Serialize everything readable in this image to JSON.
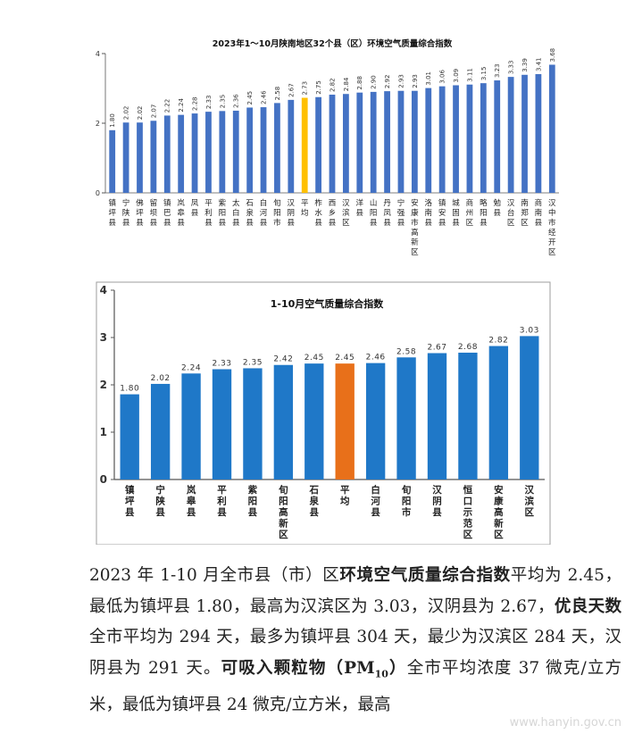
{
  "chart_data": [
    {
      "type": "bar",
      "title": "2023年1～10月陕南地区32个县（区）环境空气质量综合指数",
      "ylim": [
        0,
        4
      ],
      "yticks": [
        0,
        2,
        4
      ],
      "categories": [
        "镇坪县",
        "宁陕县",
        "佛坪县",
        "留坝县",
        "镇巴县",
        "岚皋县",
        "凤县",
        "平利县",
        "紫阳县",
        "太白县",
        "石泉县",
        "白河县",
        "旬阳市",
        "汉阴县",
        "平均",
        "柞水县",
        "西乡县",
        "汉滨区",
        "洋县",
        "山阳县",
        "丹凤县",
        "宁强县",
        "安康市高新区",
        "洛南县",
        "镇安县",
        "城固县",
        "商州区",
        "略阳县",
        "勉县",
        "汉台区",
        "南郑区",
        "商南县",
        "汉中市经开区"
      ],
      "values": [
        1.8,
        2.02,
        2.02,
        2.07,
        2.22,
        2.24,
        2.28,
        2.33,
        2.35,
        2.36,
        2.45,
        2.46,
        2.58,
        2.67,
        2.73,
        2.75,
        2.82,
        2.84,
        2.88,
        2.9,
        2.92,
        2.93,
        2.93,
        3.01,
        3.06,
        3.09,
        3.11,
        3.15,
        3.23,
        3.33,
        3.39,
        3.41,
        3.68
      ],
      "value_labels": [
        "1.80",
        "2.02",
        "2.02",
        "2.07",
        "2.22",
        "2.24",
        "2.28",
        "2.33",
        "2.35",
        "2.36",
        "2.45",
        "2.46",
        "2.58",
        "2.67",
        "2.73",
        "2.75",
        "2.82",
        "2.84",
        "2.88",
        "2.90",
        "2.92",
        "2.93",
        "2.93",
        "3.01",
        "3.06",
        "3.09",
        "3.11",
        "3.15",
        "3.23",
        "3.33",
        "3.39",
        "3.41",
        "3.68"
      ],
      "highlight": "平均",
      "colors": {
        "bar": "#4472c4",
        "highlight": "#ffc000"
      }
    },
    {
      "type": "bar",
      "title": "1-10月空气质量综合指数",
      "ylim": [
        0,
        4
      ],
      "yticks": [
        0,
        1,
        2,
        3,
        4
      ],
      "categories": [
        "镇坪县",
        "宁陕县",
        "岚皋县",
        "平利县",
        "紫阳县",
        "旬阳高新区",
        "石泉县",
        "平均",
        "白河县",
        "旬阳市",
        "汉阴县",
        "恒口示范区",
        "安康高新区",
        "汉滨区"
      ],
      "values": [
        1.8,
        2.02,
        2.24,
        2.33,
        2.35,
        2.42,
        2.45,
        2.45,
        2.46,
        2.58,
        2.67,
        2.68,
        2.82,
        3.03
      ],
      "value_labels": [
        "1.80",
        "2.02",
        "2.24",
        "2.33",
        "2.35",
        "2.42",
        "2.45",
        "2.45",
        "2.46",
        "2.58",
        "2.67",
        "2.68",
        "2.82",
        "3.03"
      ],
      "highlight": "平均",
      "colors": {
        "bar": "#1f78c8",
        "highlight": "#e8701a"
      }
    }
  ],
  "paragraph": {
    "p1": "2023 年 1-10 月全市县（市）区",
    "b1": "环境空气质量综合指数",
    "p2": "平均为 2.45，最低为镇坪县 1.80，最高为汉滨区为 3.03，汉阴县为 2.67，",
    "b2": "优良天数",
    "p3": "全市平均为 294 天，最多为镇坪县 304 天，最少为汉滨区 284 天，汉阴县为 291 天。",
    "b3": "可吸入颗粒物（PM",
    "b3sub": "10",
    "b3end": "）",
    "p4": "全市平均浓度 37 微克/立方米，最低为镇坪县 24 微克/立方米，最高"
  },
  "watermark": "www.hanyin.gov.cn"
}
